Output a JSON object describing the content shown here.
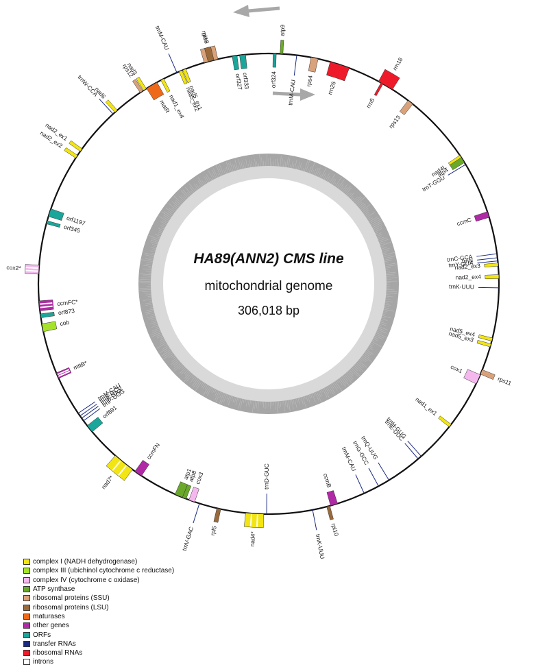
{
  "genome": {
    "title": "HA89(ANN2) CMS line",
    "subtitle": "mitochondrial genome",
    "size": "306,018 bp"
  },
  "colors": {
    "complex1": "#f2e512",
    "complex3": "#a6e22a",
    "complex4": "#f5b8ee",
    "atp": "#6aa82a",
    "ssu": "#d9a27a",
    "lsu": "#9a6a3a",
    "maturases": "#ee6a1a",
    "other": "#b02aa6",
    "orf": "#1aa69a",
    "trna": "#1a2a80",
    "rrna": "#ee1a2a",
    "intron": "#ffffff"
  },
  "legend": [
    {
      "label": "complex I (NADH dehydrogenase)",
      "color": "#f2e512"
    },
    {
      "label": "complex III (ubichinol cytochrome c reductase)",
      "color": "#a6e22a"
    },
    {
      "label": "complex IV (cytochrome c oxidase)",
      "color": "#f5b8ee"
    },
    {
      "label": "ATP synthase",
      "color": "#6aa82a"
    },
    {
      "label": "ribosomal proteins (SSU)",
      "color": "#d9a27a"
    },
    {
      "label": "ribosomal proteins (LSU)",
      "color": "#9a6a3a"
    },
    {
      "label": "maturases",
      "color": "#ee6a1a"
    },
    {
      "label": "other genes",
      "color": "#b02aa6"
    },
    {
      "label": "ORFs",
      "color": "#1aa69a"
    },
    {
      "label": "transfer RNAs",
      "color": "#1a2a80"
    },
    {
      "label": "ribosomal RNAs",
      "color": "#ee1a2a"
    },
    {
      "label": "introns",
      "color": "#ffffff"
    }
  ],
  "features": [
    {
      "label": "rps3",
      "cat": "ssu",
      "a": 345.5,
      "w": 3.5,
      "side": "out"
    },
    {
      "label": "rpl16",
      "cat": "lsu",
      "a": 345.5,
      "w": 1.5,
      "side": "out"
    },
    {
      "label": "atp9",
      "cat": "atp",
      "a": 3.2,
      "w": 0.7,
      "side": "out"
    },
    {
      "label": "orf327",
      "cat": "orf",
      "a": 351.5,
      "w": 1.2,
      "side": "in"
    },
    {
      "label": "orf333",
      "cat": "orf",
      "a": 353.5,
      "w": 1.5,
      "side": "in"
    },
    {
      "label": "orf324",
      "cat": "orf",
      "a": 1.5,
      "w": 0.8,
      "side": "in"
    },
    {
      "label": "trnM-CAU",
      "cat": "trna",
      "a": 7.0,
      "w": 0.4,
      "side": "in"
    },
    {
      "label": "rps4",
      "cat": "ssu",
      "a": 11.5,
      "w": 1.8,
      "side": "in"
    },
    {
      "label": "rrn26",
      "cat": "rrna",
      "a": 18.0,
      "w": 5.0,
      "side": "in"
    },
    {
      "label": "rrn18",
      "cat": "rrna",
      "a": 30.5,
      "w": 4.0,
      "side": "out"
    },
    {
      "label": "rrn5",
      "cat": "rrna",
      "a": 29.5,
      "w": 0.6,
      "side": "in"
    },
    {
      "label": "rps13",
      "cat": "ssu",
      "a": 38.0,
      "w": 1.5,
      "side": "in"
    },
    {
      "label": "nad4L",
      "cat": "complex1",
      "a": 56.5,
      "w": 0.8,
      "side": "in"
    },
    {
      "label": "atp4",
      "cat": "atp",
      "a": 57.5,
      "w": 1.5,
      "side": "in"
    },
    {
      "label": "trnT-GGU",
      "cat": "trna",
      "a": 58.8,
      "w": 0.4,
      "side": "in"
    },
    {
      "label": "ccmC",
      "cat": "other",
      "a": 72.5,
      "w": 1.5,
      "side": "in"
    },
    {
      "label": "trnC-GCA",
      "cat": "trna",
      "a": 82.5,
      "w": 0.4,
      "side": "in"
    },
    {
      "label": "trnN",
      "cat": "trna",
      "a": 83.5,
      "w": 0.4,
      "side": "in"
    },
    {
      "label": "trnY-GUA",
      "cat": "trna",
      "a": 84.3,
      "w": 0.4,
      "side": "in"
    },
    {
      "label": "nad2_ex3",
      "cat": "complex1",
      "a": 85.2,
      "w": 0.8,
      "side": "in"
    },
    {
      "label": "nad2_ex4",
      "cat": "complex1",
      "a": 88.2,
      "w": 1.0,
      "side": "in"
    },
    {
      "label": "trnK-UUU",
      "cat": "trna",
      "a": 91.0,
      "w": 0.4,
      "side": "in"
    },
    {
      "label": "nad5_ex4",
      "cat": "complex1",
      "a": 104.0,
      "w": 0.8,
      "side": "in"
    },
    {
      "label": "nad5_ex3",
      "cat": "complex1",
      "a": 105.5,
      "w": 0.8,
      "side": "in"
    },
    {
      "label": "rps11",
      "cat": "ssu",
      "a": 112.5,
      "w": 1.2,
      "side": "out"
    },
    {
      "label": "cox1",
      "cat": "complex4",
      "a": 114.5,
      "w": 2.5,
      "side": "in"
    },
    {
      "label": "nad1_ex1",
      "cat": "complex1",
      "a": 128.0,
      "w": 0.8,
      "side": "in"
    },
    {
      "label": "trnH-GUG",
      "cat": "trna",
      "a": 138.5,
      "w": 0.4,
      "side": "in"
    },
    {
      "label": "trnE-UUC",
      "cat": "trna",
      "a": 139.5,
      "w": 0.4,
      "side": "in"
    },
    {
      "label": "trnQ-UUG",
      "cat": "trna",
      "a": 148.5,
      "w": 0.4,
      "side": "in"
    },
    {
      "label": "trnG-GCC",
      "cat": "trna",
      "a": 151.5,
      "w": 0.4,
      "side": "in"
    },
    {
      "label": "trnM-CAU",
      "cat": "trna",
      "a": 155.5,
      "w": 0.4,
      "side": "in"
    },
    {
      "label": "ccmB",
      "cat": "other",
      "a": 163.5,
      "w": 1.8,
      "side": "in"
    },
    {
      "label": "rpl10",
      "cat": "lsu",
      "a": 165.0,
      "w": 0.8,
      "side": "out"
    },
    {
      "label": "trnK-UUU",
      "cat": "trna",
      "a": 169.0,
      "w": 0.4,
      "side": "out"
    },
    {
      "label": "trnD-GUC",
      "cat": "trna",
      "a": 180.5,
      "w": 0.4,
      "side": "in"
    },
    {
      "label": "nad4*",
      "cat": "complex1",
      "a": 183.5,
      "w": 4.5,
      "side": "out"
    },
    {
      "label": "rpl5",
      "cat": "lsu",
      "a": 192.5,
      "w": 1.0,
      "side": "out"
    },
    {
      "label": "trnV-GAC",
      "cat": "trna",
      "a": 197.5,
      "w": 0.4,
      "side": "out"
    },
    {
      "label": "cox3",
      "cat": "complex4",
      "a": 199.5,
      "w": 1.5,
      "side": "in"
    },
    {
      "label": "atp8",
      "cat": "atp",
      "a": 201.5,
      "w": 1.0,
      "side": "in"
    },
    {
      "label": "atp1",
      "cat": "atp",
      "a": 203.0,
      "w": 2.0,
      "side": "in"
    },
    {
      "label": "ccmFN",
      "cat": "other",
      "a": 214.5,
      "w": 2.0,
      "side": "in"
    },
    {
      "label": "nad7*",
      "cat": "complex1",
      "a": 219.0,
      "w": 5.5,
      "side": "out"
    },
    {
      "label": "orf891",
      "cat": "orf",
      "a": 231.0,
      "w": 2.0,
      "side": "in"
    },
    {
      "label": "trnP-UGG",
      "cat": "trna",
      "a": 233.5,
      "w": 0.4,
      "side": "in"
    },
    {
      "label": "trnF-GAA",
      "cat": "trna",
      "a": 234.3,
      "w": 0.4,
      "side": "in"
    },
    {
      "label": "trnS-GCU",
      "cat": "trna",
      "a": 235.0,
      "w": 0.4,
      "side": "in"
    },
    {
      "label": "trnM-CAU",
      "cat": "trna",
      "a": 235.8,
      "w": 0.4,
      "side": "in"
    },
    {
      "label": "mttB*",
      "cat": "other",
      "a": 246.5,
      "w": 1.5,
      "side": "in"
    },
    {
      "label": "cob",
      "cat": "complex3",
      "a": 259.0,
      "w": 2.0,
      "side": "in"
    },
    {
      "label": "orf873",
      "cat": "orf",
      "a": 262.0,
      "w": 1.0,
      "side": "in"
    },
    {
      "label": "ccmFC*",
      "cat": "other",
      "a": 264.5,
      "w": 2.5,
      "side": "in"
    },
    {
      "label": "cox2*",
      "cat": "complex4",
      "a": 273.5,
      "w": 2.2,
      "side": "out"
    },
    {
      "label": "orf345",
      "cat": "orf",
      "a": 285.5,
      "w": 0.8,
      "side": "in"
    },
    {
      "label": "orf1197",
      "cat": "orf",
      "a": 288.0,
      "w": 2.0,
      "side": "in"
    },
    {
      "label": "nad2_ex2",
      "cat": "complex1",
      "a": 303.5,
      "w": 0.8,
      "side": "out"
    },
    {
      "label": "nad2_ex1",
      "cat": "complex1",
      "a": 305.5,
      "w": 0.8,
      "side": "out"
    },
    {
      "label": "trnW-CCA",
      "cat": "trna",
      "a": 317.5,
      "w": 0.4,
      "side": "out"
    },
    {
      "label": "nad6",
      "cat": "complex1",
      "a": 318.5,
      "w": 0.8,
      "side": "out"
    },
    {
      "label": "rps12",
      "cat": "ssu",
      "a": 326.5,
      "w": 0.8,
      "side": "out"
    },
    {
      "label": "nad3",
      "cat": "complex1",
      "a": 327.5,
      "w": 0.8,
      "side": "out"
    },
    {
      "label": "matR",
      "cat": "maturases",
      "a": 329.5,
      "w": 3.0,
      "side": "in"
    },
    {
      "label": "nad1_ex4",
      "cat": "complex1",
      "a": 332.5,
      "w": 0.8,
      "side": "in"
    },
    {
      "label": "trnM-CAU",
      "cat": "trna",
      "a": 336.5,
      "w": 0.4,
      "side": "out"
    },
    {
      "label": "nad5_ex2",
      "cat": "complex1",
      "a": 337.5,
      "w": 0.8,
      "side": "in"
    },
    {
      "label": "nad5_ex1",
      "cat": "complex1",
      "a": 338.5,
      "w": 0.8,
      "side": "in"
    }
  ]
}
